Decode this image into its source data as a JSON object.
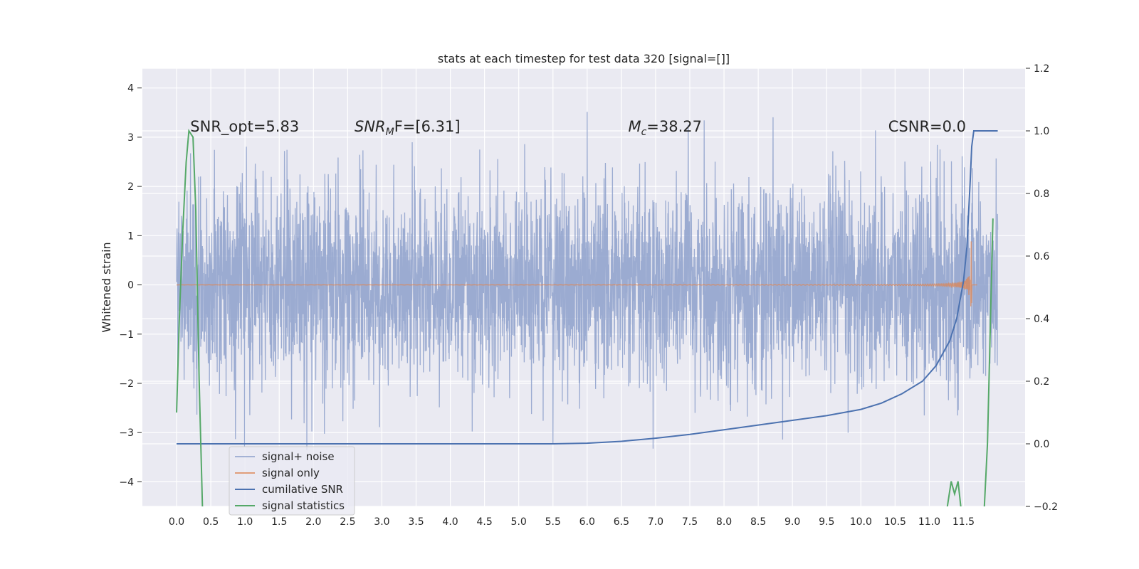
{
  "chart_data": {
    "type": "line",
    "title": "stats at each timestep for test data 320 [signal=[]]",
    "ylabel": "Whitened strain",
    "xlim": [
      -0.5,
      12.4
    ],
    "ylim": [
      -4.5,
      4.4
    ],
    "ylim_right": [
      -0.2,
      1.2
    ],
    "x_ticks": [
      0.0,
      0.5,
      1.0,
      1.5,
      2.0,
      2.5,
      3.0,
      3.5,
      4.0,
      4.5,
      5.0,
      5.5,
      6.0,
      6.5,
      7.0,
      7.5,
      8.0,
      8.5,
      9.0,
      9.5,
      10.0,
      10.5,
      11.0,
      11.5
    ],
    "x_tick_labels": [
      "0.0",
      "0.5",
      "1.0",
      "1.5",
      "2.0",
      "2.5",
      "3.0",
      "3.5",
      "4.0",
      "4.5",
      "5.0",
      "5.5",
      "6.0",
      "6.5",
      "7.0",
      "7.5",
      "8.0",
      "8.5",
      "9.0",
      "9.5",
      "10.0",
      "10.5",
      "11.0",
      "11.5"
    ],
    "y_ticks": [
      -4,
      -3,
      -2,
      -1,
      0,
      1,
      2,
      3,
      4
    ],
    "y_tick_labels": [
      "−4",
      "−3",
      "−2",
      "−1",
      "0",
      "1",
      "2",
      "3",
      "4"
    ],
    "y_right_ticks": [
      -0.2,
      0.0,
      0.2,
      0.4,
      0.6,
      0.8,
      1.0,
      1.2
    ],
    "y_right_tick_labels": [
      "−0.2",
      "0.0",
      "0.2",
      "0.4",
      "0.6",
      "0.8",
      "1.0",
      "1.2"
    ],
    "grid": true,
    "legend_position": "lower-left",
    "annotations": [
      {
        "text": "SNR_opt=5.83",
        "x": 0.2,
        "y": 3.2
      },
      {
        "text": "SNR",
        "sub": "M",
        "rest": "F=[6.31]",
        "x": 2.6,
        "y": 3.2
      },
      {
        "text": "M",
        "sub": "c",
        "rest": "=38.27",
        "x": 6.6,
        "y": 3.2
      },
      {
        "text": "CSNR=0.0",
        "x": 10.4,
        "y": 3.2
      }
    ],
    "series": [
      {
        "name": "signal+ noise",
        "axis": "left",
        "color": "#8da0cb",
        "description": "white noise, std ~1, x from 0 to 12.0"
      },
      {
        "name": "signal only",
        "axis": "left",
        "color": "#dd8452",
        "description": "chirp near zero growing to amplitude ~1 near x=11.6"
      },
      {
        "name": "cumilative SNR",
        "axis": "right",
        "color": "#4c72b0",
        "x": [
          0.0,
          5.5,
          6.0,
          6.5,
          7.0,
          7.5,
          8.0,
          8.5,
          9.0,
          9.5,
          10.0,
          10.3,
          10.6,
          10.9,
          11.1,
          11.3,
          11.4,
          11.5,
          11.55,
          11.6,
          11.62,
          11.65,
          12.0
        ],
        "values": [
          0.0,
          0.0,
          0.002,
          0.008,
          0.018,
          0.03,
          0.045,
          0.06,
          0.075,
          0.09,
          0.11,
          0.13,
          0.16,
          0.2,
          0.25,
          0.33,
          0.4,
          0.52,
          0.63,
          0.85,
          0.95,
          1.0,
          1.0
        ]
      },
      {
        "name": "signal statistics",
        "axis": "right",
        "color": "#55a868",
        "x": [
          0.0,
          0.04,
          0.09,
          0.14,
          0.18,
          0.24,
          0.28,
          0.33,
          0.38,
          11.25,
          11.32,
          11.37,
          11.42,
          11.47,
          11.8,
          11.85,
          11.93
        ],
        "values": [
          0.1,
          0.4,
          0.68,
          0.9,
          1.0,
          0.98,
          0.75,
          0.2,
          -0.22,
          -0.22,
          -0.12,
          -0.16,
          -0.12,
          -0.22,
          -0.22,
          0.0,
          0.72
        ]
      }
    ]
  }
}
